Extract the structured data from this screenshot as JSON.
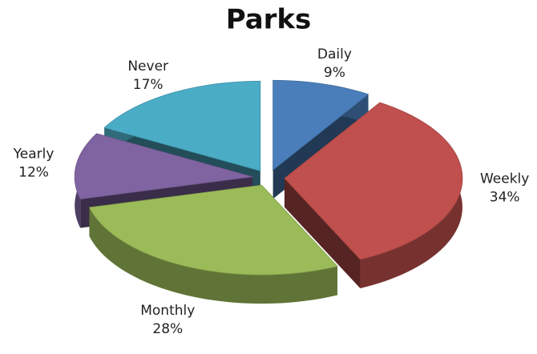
{
  "chart_data": {
    "type": "pie",
    "title": "Parks",
    "categories": [
      "Daily",
      "Weekly",
      "Monthly",
      "Yearly",
      "Never"
    ],
    "values": [
      9,
      34,
      28,
      12,
      17
    ],
    "value_labels": [
      "9%",
      "34%",
      "28%",
      "12%",
      "17%"
    ],
    "colors": [
      "#4a7ebb",
      "#c0504d",
      "#9bbb59",
      "#8064a2",
      "#4bacc6"
    ]
  }
}
